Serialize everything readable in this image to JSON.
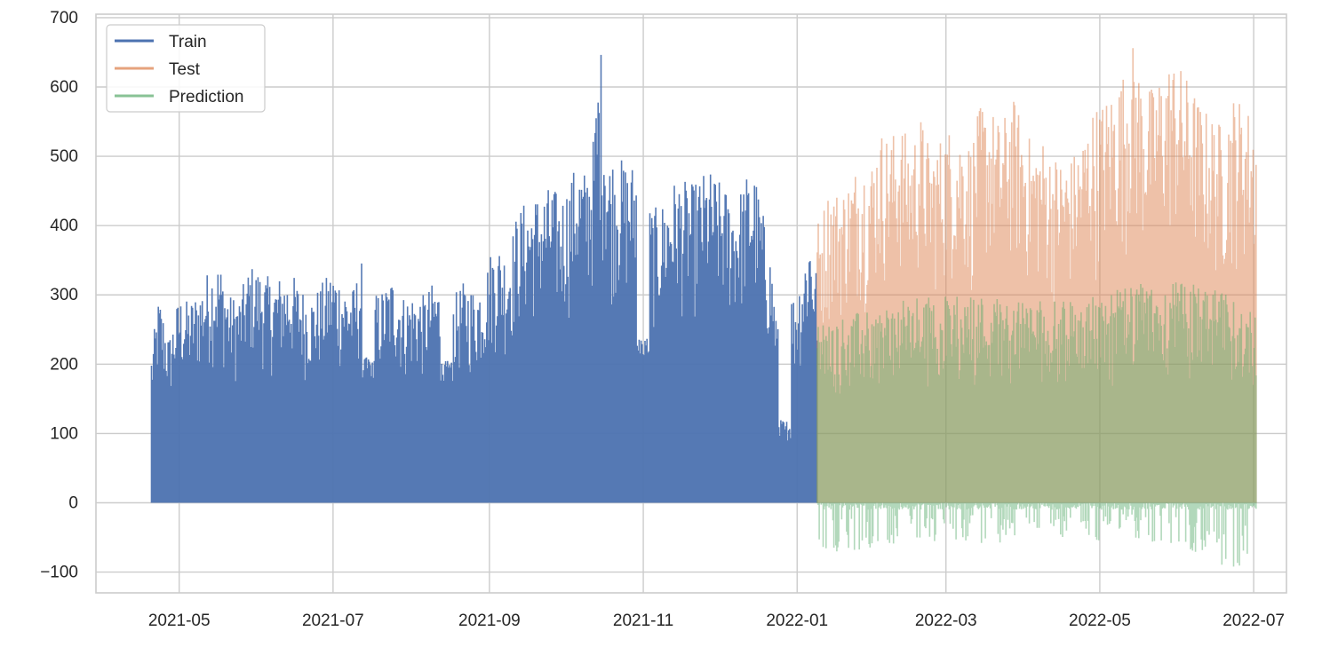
{
  "chart_data": {
    "type": "line",
    "title": "",
    "xlabel": "",
    "ylabel": "",
    "grid": true,
    "legend_position": "top-left",
    "xlim": [
      "2021-03-29",
      "2022-07-14"
    ],
    "ylim": [
      -130,
      705
    ],
    "x_ticks": [
      "2021-05-01",
      "2021-07-01",
      "2021-09-01",
      "2021-11-01",
      "2022-01-01",
      "2022-03-01",
      "2022-05-01",
      "2022-07-01"
    ],
    "x_tick_labels": [
      "2021-05",
      "2021-07",
      "2021-09",
      "2021-11",
      "2022-01",
      "2022-03",
      "2022-05",
      "2022-07"
    ],
    "y_ticks": [
      -100,
      0,
      100,
      200,
      300,
      400,
      500,
      600,
      700
    ],
    "y_tick_labels": [
      "−100",
      "0",
      "100",
      "200",
      "300",
      "400",
      "500",
      "600",
      "700"
    ],
    "series": [
      {
        "name": "Train",
        "color": "#4c72b0",
        "opacity": 0.95,
        "x_start": "2021-04-20",
        "x_end": "2022-01-09",
        "min": 0,
        "peaks": [
          [
            "2021-04-20",
            220
          ],
          [
            "2021-04-23",
            300
          ],
          [
            "2021-04-27",
            240
          ],
          [
            "2021-05-01",
            300
          ],
          [
            "2021-05-05",
            290
          ],
          [
            "2021-05-09",
            310
          ],
          [
            "2021-05-13",
            340
          ],
          [
            "2021-05-17",
            350
          ],
          [
            "2021-05-21",
            300
          ],
          [
            "2021-05-25",
            300
          ],
          [
            "2021-05-29",
            345
          ],
          [
            "2021-06-03",
            335
          ],
          [
            "2021-06-07",
            320
          ],
          [
            "2021-06-11",
            330
          ],
          [
            "2021-06-15",
            330
          ],
          [
            "2021-06-19",
            310
          ],
          [
            "2021-06-23",
            300
          ],
          [
            "2021-06-27",
            320
          ],
          [
            "2021-07-01",
            340
          ],
          [
            "2021-07-05",
            320
          ],
          [
            "2021-07-09",
            310
          ],
          [
            "2021-07-13",
            360
          ],
          [
            "2021-07-17",
            300
          ],
          [
            "2021-07-21",
            310
          ],
          [
            "2021-07-25",
            330
          ],
          [
            "2021-07-29",
            300
          ],
          [
            "2021-08-02",
            305
          ],
          [
            "2021-08-06",
            300
          ],
          [
            "2021-08-10",
            320
          ],
          [
            "2021-08-14",
            310
          ],
          [
            "2021-08-18",
            300
          ],
          [
            "2021-08-22",
            320
          ],
          [
            "2021-08-26",
            310
          ],
          [
            "2021-08-30",
            330
          ],
          [
            "2021-09-02",
            370
          ],
          [
            "2021-09-05",
            375
          ],
          [
            "2021-09-08",
            360
          ],
          [
            "2021-09-12",
            420
          ],
          [
            "2021-09-15",
            435
          ],
          [
            "2021-09-19",
            445
          ],
          [
            "2021-09-22",
            450
          ],
          [
            "2021-09-26",
            460
          ],
          [
            "2021-09-29",
            440
          ],
          [
            "2021-10-03",
            470
          ],
          [
            "2021-10-06",
            495
          ],
          [
            "2021-10-09",
            480
          ],
          [
            "2021-10-12",
            520
          ],
          [
            "2021-10-15",
            670
          ],
          [
            "2021-10-18",
            500
          ],
          [
            "2021-10-21",
            505
          ],
          [
            "2021-10-24",
            495
          ],
          [
            "2021-10-27",
            490
          ],
          [
            "2021-10-30",
            500
          ],
          [
            "2021-11-03",
            430
          ],
          [
            "2021-11-07",
            425
          ],
          [
            "2021-11-10",
            445
          ],
          [
            "2021-11-14",
            470
          ],
          [
            "2021-11-17",
            465
          ],
          [
            "2021-11-21",
            460
          ],
          [
            "2021-11-24",
            475
          ],
          [
            "2021-11-28",
            480
          ],
          [
            "2021-12-01",
            465
          ],
          [
            "2021-12-05",
            450
          ],
          [
            "2021-12-08",
            440
          ],
          [
            "2021-12-12",
            475
          ],
          [
            "2021-12-15",
            480
          ],
          [
            "2021-12-19",
            410
          ],
          [
            "2021-12-22",
            345
          ],
          [
            "2021-12-25",
            230
          ],
          [
            "2021-12-28",
            310
          ],
          [
            "2021-12-31",
            300
          ],
          [
            "2022-01-03",
            340
          ],
          [
            "2022-01-06",
            400
          ],
          [
            "2022-01-09",
            330
          ]
        ],
        "dips": [
          [
            "2021-07-15",
            180
          ],
          [
            "2021-08-15",
            175
          ],
          [
            "2021-11-01",
            210
          ],
          [
            "2021-12-27",
            90
          ]
        ]
      },
      {
        "name": "Test",
        "color": "#dd8452",
        "opacity": 0.5,
        "x_start": "2022-01-09",
        "x_end": "2022-07-02",
        "min": 0,
        "peaks": [
          [
            "2022-01-10",
            410
          ],
          [
            "2022-01-14",
            460
          ],
          [
            "2022-01-18",
            450
          ],
          [
            "2022-01-22",
            470
          ],
          [
            "2022-01-26",
            500
          ],
          [
            "2022-01-30",
            490
          ],
          [
            "2022-02-03",
            540
          ],
          [
            "2022-02-07",
            530
          ],
          [
            "2022-02-11",
            550
          ],
          [
            "2022-02-15",
            520
          ],
          [
            "2022-02-19",
            560
          ],
          [
            "2022-02-23",
            510
          ],
          [
            "2022-02-27",
            530
          ],
          [
            "2022-03-03",
            545
          ],
          [
            "2022-03-07",
            540
          ],
          [
            "2022-03-11",
            520
          ],
          [
            "2022-03-15",
            580
          ],
          [
            "2022-03-19",
            570
          ],
          [
            "2022-03-23",
            545
          ],
          [
            "2022-03-27",
            590
          ],
          [
            "2022-03-31",
            560
          ],
          [
            "2022-04-04",
            520
          ],
          [
            "2022-04-08",
            530
          ],
          [
            "2022-04-12",
            505
          ],
          [
            "2022-04-16",
            500
          ],
          [
            "2022-04-20",
            500
          ],
          [
            "2022-04-24",
            530
          ],
          [
            "2022-04-28",
            570
          ],
          [
            "2022-05-02",
            580
          ],
          [
            "2022-05-06",
            600
          ],
          [
            "2022-05-10",
            620
          ],
          [
            "2022-05-14",
            665
          ],
          [
            "2022-05-18",
            610
          ],
          [
            "2022-05-22",
            600
          ],
          [
            "2022-05-26",
            630
          ],
          [
            "2022-05-30",
            645
          ],
          [
            "2022-06-03",
            625
          ],
          [
            "2022-06-07",
            600
          ],
          [
            "2022-06-11",
            570
          ],
          [
            "2022-06-15",
            560
          ],
          [
            "2022-06-19",
            545
          ],
          [
            "2022-06-23",
            590
          ],
          [
            "2022-06-27",
            580
          ],
          [
            "2022-07-01",
            560
          ]
        ]
      },
      {
        "name": "Prediction",
        "color": "#55a868",
        "opacity": 0.45,
        "x_start": "2022-01-09",
        "x_end": "2022-07-02",
        "min": -95,
        "peaks": [
          [
            "2022-01-10",
            260
          ],
          [
            "2022-01-20",
            270
          ],
          [
            "2022-02-01",
            280
          ],
          [
            "2022-02-15",
            295
          ],
          [
            "2022-03-01",
            300
          ],
          [
            "2022-03-15",
            300
          ],
          [
            "2022-04-01",
            295
          ],
          [
            "2022-04-15",
            290
          ],
          [
            "2022-05-01",
            300
          ],
          [
            "2022-05-15",
            315
          ],
          [
            "2022-06-01",
            320
          ],
          [
            "2022-06-15",
            310
          ],
          [
            "2022-07-01",
            280
          ]
        ],
        "dips": [
          [
            "2022-01-10",
            -80
          ],
          [
            "2022-02-10",
            -60
          ],
          [
            "2022-03-10",
            -60
          ],
          [
            "2022-04-10",
            -55
          ],
          [
            "2022-05-10",
            -55
          ],
          [
            "2022-06-01",
            -60
          ],
          [
            "2022-06-20",
            -95
          ],
          [
            "2022-07-01",
            -90
          ]
        ]
      }
    ]
  }
}
